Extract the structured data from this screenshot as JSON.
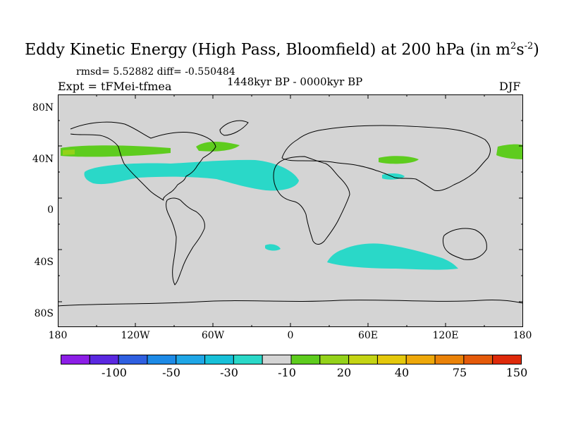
{
  "title": {
    "main": "Eddy Kinetic Energy (High Pass, Bloomfield) at 200 hPa (in m",
    "sup1": "2",
    "mid": "s",
    "sup2": "-2",
    "end": ")"
  },
  "stats": "rmsd= 5.52882 diff= -0.550484",
  "experiment": "Expt = tFMei-tfmea",
  "period": "1448kyr BP - 0000kyr BP",
  "season": "DJF",
  "axes": {
    "y_ticks": [
      "80N",
      "40N",
      "0",
      "40S",
      "80S"
    ],
    "x_ticks": [
      "180",
      "120W",
      "60W",
      "0",
      "60E",
      "120E",
      "180"
    ]
  },
  "colorbar": {
    "colors": [
      "#8c1ee6",
      "#5a28e0",
      "#2f5fe0",
      "#1d8ae6",
      "#1fa6e6",
      "#17c0d8",
      "#2ad8c8",
      "#d4d4d4",
      "#5ecc1e",
      "#94d21a",
      "#c4d414",
      "#e4c80c",
      "#eea80a",
      "#ea8208",
      "#e45a0a",
      "#de2a0a"
    ],
    "labels": [
      "-100",
      "-50",
      "-30",
      "-10",
      "20",
      "40",
      "75",
      "150"
    ]
  },
  "map_colors": {
    "background": "#d4d4d4",
    "negative_anomaly": "#2ad8c8",
    "positive_anomaly": "#5ecc1e",
    "positive_strong": "#94d21a"
  }
}
